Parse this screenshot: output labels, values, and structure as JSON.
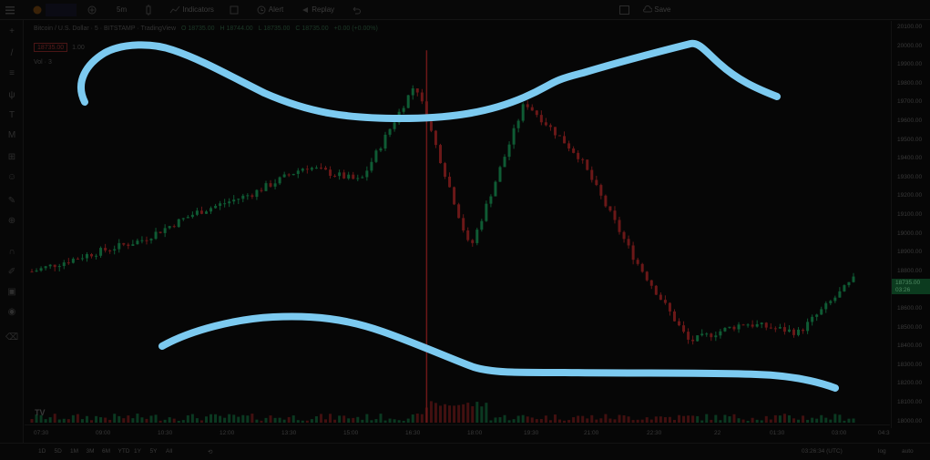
{
  "toolbar": {
    "interval": "5m",
    "indicators_label": "Indicators",
    "alert_label": "Alert",
    "replay_label": "Replay",
    "save_label": "Save"
  },
  "legend": {
    "symbol": "Bitcoin / U.S. Dollar · 5 · BITSTAMP · TradingView",
    "open": "O 18735.00",
    "high": "H 18744.00",
    "low": "L 18735.00",
    "close": "C 18735.00",
    "change": "+0.00 (+0.00%)",
    "sell_price": "18735.00",
    "spread": "1.00",
    "volume_label": "Vol · 3"
  },
  "price_axis": {
    "ticks": [
      "20100.00",
      "20000.00",
      "19900.00",
      "19800.00",
      "19700.00",
      "19600.00",
      "19500.00",
      "19400.00",
      "19300.00",
      "19200.00",
      "19100.00",
      "19000.00",
      "18900.00",
      "18800.00",
      "18700.00",
      "18600.00",
      "18500.00",
      "18400.00",
      "18300.00",
      "18200.00",
      "18100.00",
      "18000.00"
    ],
    "current_price": "18735.00",
    "countdown": "03:26"
  },
  "time_axis": {
    "ticks": [
      "07:30",
      "09:00",
      "10:30",
      "12:00",
      "13:30",
      "15:00",
      "16:30",
      "18:00",
      "19:30",
      "21:00",
      "22:30",
      "22",
      "01:30",
      "03:00",
      "04:3"
    ]
  },
  "bottom": {
    "ranges": [
      "1D",
      "5D",
      "1M",
      "3M",
      "6M",
      "YTD",
      "1Y",
      "5Y",
      "All"
    ],
    "clock": "03:26:34 (UTC)",
    "log_label": "log",
    "auto_label": "auto"
  },
  "chart_data": {
    "type": "candlestick",
    "symbol": "BTC/USD",
    "interval": "5",
    "exchange": "BITSTAMP",
    "ylim": [
      18000,
      20100
    ],
    "approx_close_path": [
      {
        "time": "07:30",
        "price": 18780
      },
      {
        "time": "09:00",
        "price": 18870
      },
      {
        "time": "10:30",
        "price": 18950
      },
      {
        "time": "12:00",
        "price": 19100
      },
      {
        "time": "13:30",
        "price": 19200
      },
      {
        "time": "15:00",
        "price": 19350
      },
      {
        "time": "16:30",
        "price": 19270
      },
      {
        "time": "18:00",
        "price": 19800
      },
      {
        "time": "18:10",
        "price": 18900
      },
      {
        "time": "19:00",
        "price": 19700
      },
      {
        "time": "19:30",
        "price": 19400
      },
      {
        "time": "21:00",
        "price": 18850
      },
      {
        "time": "22:30",
        "price": 18400
      },
      {
        "time": "22",
        "price": 18500
      },
      {
        "time": "01:30",
        "price": 18450
      },
      {
        "time": "03:00",
        "price": 18735
      }
    ]
  },
  "annotations": {
    "stroke_color": "#7ccaf0"
  },
  "colors": {
    "up": "#0f5b34",
    "down": "#6b1818",
    "background": "#060606"
  }
}
